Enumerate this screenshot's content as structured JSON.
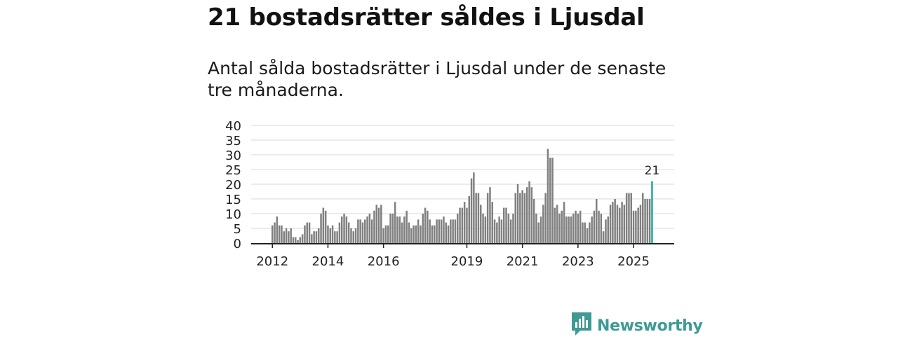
{
  "title": "21 bostadsrätter såldes i Ljusdal",
  "subtitle": "Antal sålda bostadsrätter i Ljusdal under de senaste tre månaderna.",
  "brand": {
    "name": "Newsworthy",
    "icon": "bar-chart-icon",
    "color": "#3d9a94"
  },
  "colors": {
    "bar": "#808080",
    "highlight": "#1fa7a0",
    "grid": "#d9d9d9",
    "axis": "#222222"
  },
  "chart_data": {
    "type": "bar",
    "title": "21 bostadsrätter såldes i Ljusdal",
    "xlabel": "",
    "ylabel": "",
    "ylim": [
      0,
      40
    ],
    "yticks": [
      "0",
      "5",
      "10",
      "15",
      "20",
      "25",
      "30",
      "35",
      "40"
    ],
    "xticks": [
      {
        "label": "2012",
        "index": 0
      },
      {
        "label": "2014",
        "index": 24
      },
      {
        "label": "2016",
        "index": 48
      },
      {
        "label": "2019",
        "index": 84
      },
      {
        "label": "2021",
        "index": 108
      },
      {
        "label": "2023",
        "index": 132
      },
      {
        "label": "2025",
        "index": 156
      }
    ],
    "start_period": "2012-01",
    "values": [
      6,
      7,
      9,
      6,
      6,
      4,
      5,
      4,
      5,
      2,
      2,
      1,
      2,
      3,
      6,
      7,
      7,
      3,
      4,
      4,
      5,
      10,
      12,
      11,
      6,
      5,
      6,
      4,
      4,
      7,
      9,
      10,
      9,
      7,
      5,
      4,
      5,
      8,
      8,
      7,
      8,
      9,
      10,
      8,
      11,
      13,
      12,
      13,
      5,
      6,
      6,
      10,
      10,
      14,
      9,
      9,
      7,
      9,
      11,
      7,
      5,
      6,
      6,
      8,
      6,
      10,
      12,
      11,
      8,
      6,
      6,
      8,
      8,
      8,
      9,
      7,
      6,
      8,
      8,
      8,
      10,
      12,
      12,
      14,
      12,
      16,
      22,
      24,
      17,
      17,
      13,
      10,
      9,
      17,
      19,
      14,
      8,
      7,
      9,
      8,
      12,
      12,
      10,
      8,
      10,
      17,
      20,
      17,
      18,
      17,
      19,
      21,
      19,
      15,
      10,
      7,
      9,
      13,
      17,
      32,
      29,
      29,
      12,
      13,
      10,
      11,
      14,
      9,
      9,
      9,
      10,
      11,
      10,
      11,
      7,
      7,
      5,
      7,
      9,
      11,
      15,
      11,
      10,
      4,
      8,
      9,
      13,
      14,
      15,
      13,
      12,
      14,
      13,
      17,
      17,
      17,
      11,
      11,
      12,
      13,
      17,
      15,
      15,
      15,
      21
    ],
    "highlight": {
      "index": 164,
      "value": 21,
      "label": "21"
    }
  }
}
